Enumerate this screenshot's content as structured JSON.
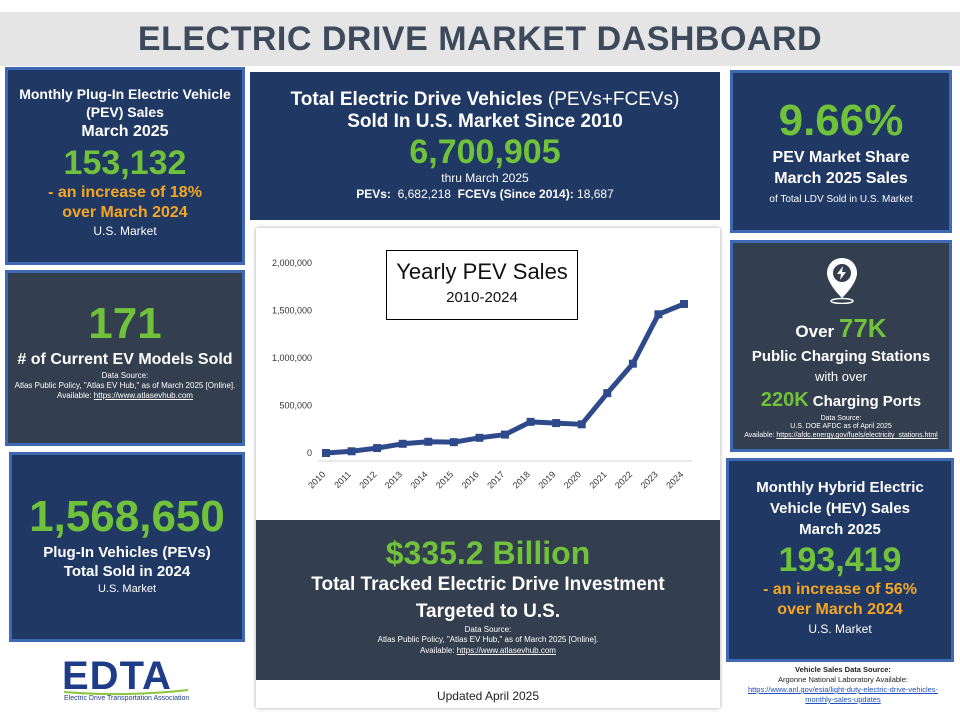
{
  "header": {
    "title": "ELECTRIC DRIVE MARKET DASHBOARD"
  },
  "pev_monthly": {
    "line1": "Monthly Plug-In Electric Vehicle",
    "line2": "(PEV) Sales",
    "line3": "March 2025",
    "value": "153,132",
    "change1": "- an increase of 18%",
    "change2": "over March 2024",
    "market": "U.S. Market"
  },
  "total_ev": {
    "line1_bold": "Total Electric Drive Vehicles",
    "line1_rest": " (PEVs+FCEVs)",
    "line2": "Sold In U.S. Market Since 2010",
    "value": "6,700,905",
    "thru": "thru March 2025",
    "pevs_label": "PEVs:",
    "pevs_value": "6,682,218",
    "fcevs_label": "FCEVs (Since 2014):",
    "fcevs_value": "18,687"
  },
  "market_share": {
    "value": "9.66%",
    "line1": "PEV Market Share",
    "line2": "March 2025 Sales",
    "line3": "of Total LDV Sold in U.S. Market"
  },
  "models": {
    "value": "171",
    "label": "# of Current EV Models Sold",
    "source1": "Data Source:",
    "source2": "Atlas Public Policy, \"Atlas EV Hub,\" as of March 2025 [Online].",
    "source3_label": "Available: ",
    "source3_link": "https://www.atlasevhub.com"
  },
  "charging": {
    "over": "Over ",
    "stations_value": "77K",
    "stations_label": "Public Charging Stations",
    "with_over": "with over",
    "ports_value": "220K",
    "ports_label": " Charging Ports",
    "source1": "Data Source:",
    "source2": "U.S. DOE AFDC as of April 2025",
    "source3_label": "Available: ",
    "source3_link": "https://afdc.energy.gov/fuels/electricity_stations.html",
    "icon": "charging-station-pin-icon"
  },
  "pev_2024": {
    "value": "1,568,650",
    "line1": "Plug-In Vehicles (PEVs)",
    "line2": "Total Sold in 2024",
    "market": "U.S. Market"
  },
  "hev_monthly": {
    "line1": "Monthly Hybrid Electric",
    "line2": "Vehicle (HEV) Sales",
    "line3": "March 2025",
    "value": "193,419",
    "change1": "- an increase of 56%",
    "change2": "over March 2024",
    "market": "U.S. Market"
  },
  "investment": {
    "value": "$335.2 Billion",
    "line1": "Total Tracked Electric Drive Investment",
    "line2": "Targeted to U.S.",
    "source1": "Data Source:",
    "source2": "Atlas Public Policy, \"Atlas EV Hub,\" as of March 2025 [Online].",
    "source3_label": "Available: ",
    "source3_link": "https://www.atlasevhub.com"
  },
  "updated": "Updated April 2025",
  "logo": {
    "text": "EDTA",
    "subtitle": "Electric Drive Transportation Association"
  },
  "vehicle_source": {
    "line1": "Vehicle Sales Data Source:",
    "line2": "Argonne National Laboratory Available:",
    "link1": "https://www.anl.gov/esia/light-duty-electric-drive-vehicles-",
    "link2": "monthly-sales-updates"
  },
  "chart_data": {
    "type": "line",
    "title": "Yearly PEV Sales",
    "subtitle": "2010-2024",
    "categories": [
      "2010",
      "2011",
      "2012",
      "2013",
      "2014",
      "2015",
      "2016",
      "2017",
      "2018",
      "2019",
      "2020",
      "2021",
      "2022",
      "2023",
      "2024"
    ],
    "values": [
      0,
      18000,
      52000,
      97000,
      118000,
      114000,
      160000,
      194000,
      328000,
      315000,
      302000,
      630000,
      940000,
      1460000,
      1568650
    ],
    "yticks": [
      0,
      500000,
      1000000,
      1500000,
      2000000
    ],
    "ytick_labels": [
      "0",
      "500,000",
      "1,000,000",
      "1,500,000",
      "2,000,000"
    ],
    "ylim": [
      0,
      2000000
    ],
    "line_color": "#2f4a8a",
    "grid": false,
    "xlabel": "",
    "ylabel": ""
  }
}
